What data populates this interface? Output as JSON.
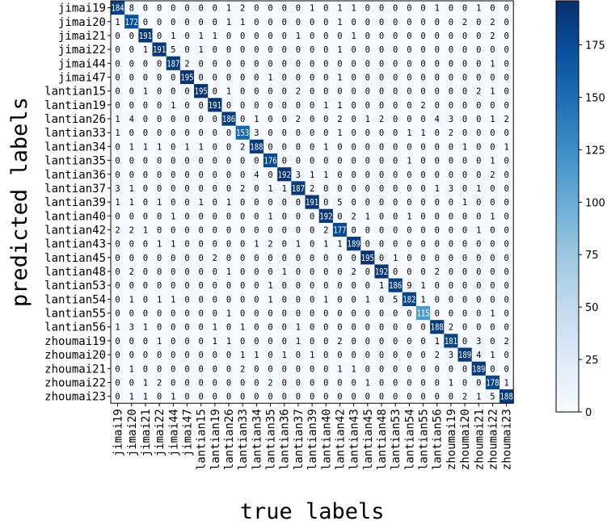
{
  "chart_data": {
    "type": "heatmap",
    "title": "",
    "xlabel": "true labels",
    "ylabel": "predicted labels",
    "row_labels": [
      "jimai19",
      "jimai20",
      "jimai21",
      "jimai22",
      "jimai44",
      "jimai47",
      "lantian15",
      "lantian19",
      "lantian26",
      "lantian33",
      "lantian34",
      "lantian35",
      "lantian36",
      "lantian37",
      "lantian39",
      "lantian40",
      "lantian42",
      "lantian43",
      "lantian45",
      "lantian48",
      "lantian53",
      "lantian54",
      "lantian55",
      "lantian56",
      "zhoumai19",
      "zhoumai20",
      "zhoumai21",
      "zhoumai22",
      "zhoumai23"
    ],
    "col_labels": [
      "jimai19",
      "jimai20",
      "jimai21",
      "jimai22",
      "jimai44",
      "jimai47",
      "lantian15",
      "lantian19",
      "lantian26",
      "lantian33",
      "lantian34",
      "lantian35",
      "lantian36",
      "lantian37",
      "lantian39",
      "lantian40",
      "lantian42",
      "lantian43",
      "lantian45",
      "lantian48",
      "lantian53",
      "lantian54",
      "lantian55",
      "lantian56",
      "zhoumai19",
      "zhoumai20",
      "zhoumai21",
      "zhoumai22",
      "zhoumai23"
    ],
    "values": [
      [
        184,
        8,
        0,
        0,
        0,
        0,
        0,
        0,
        1,
        2,
        0,
        0,
        0,
        0,
        1,
        0,
        1,
        1,
        0,
        0,
        0,
        0,
        0,
        1,
        0,
        0,
        1,
        0,
        0
      ],
      [
        1,
        172,
        0,
        0,
        0,
        0,
        0,
        0,
        1,
        1,
        0,
        0,
        0,
        0,
        0,
        0,
        1,
        0,
        0,
        0,
        0,
        0,
        0,
        0,
        0,
        2,
        0,
        2,
        0
      ],
      [
        0,
        0,
        191,
        0,
        1,
        0,
        1,
        1,
        0,
        0,
        0,
        0,
        0,
        1,
        0,
        0,
        0,
        1,
        0,
        0,
        0,
        0,
        0,
        0,
        0,
        0,
        0,
        2,
        0
      ],
      [
        0,
        0,
        1,
        191,
        5,
        0,
        1,
        0,
        0,
        0,
        0,
        0,
        0,
        0,
        0,
        0,
        1,
        0,
        0,
        0,
        0,
        0,
        0,
        0,
        0,
        0,
        0,
        0,
        0
      ],
      [
        0,
        0,
        0,
        0,
        187,
        2,
        0,
        0,
        0,
        0,
        0,
        0,
        0,
        0,
        0,
        0,
        0,
        0,
        0,
        0,
        0,
        0,
        0,
        0,
        0,
        0,
        0,
        1,
        0
      ],
      [
        0,
        0,
        0,
        0,
        0,
        195,
        0,
        0,
        0,
        0,
        0,
        1,
        0,
        0,
        0,
        0,
        1,
        0,
        0,
        0,
        0,
        0,
        0,
        0,
        0,
        0,
        0,
        0,
        0
      ],
      [
        0,
        0,
        1,
        0,
        0,
        0,
        195,
        0,
        1,
        0,
        0,
        0,
        0,
        2,
        0,
        0,
        0,
        0,
        0,
        0,
        0,
        0,
        0,
        0,
        0,
        0,
        2,
        1,
        0
      ],
      [
        0,
        0,
        0,
        0,
        1,
        0,
        0,
        191,
        0,
        0,
        0,
        0,
        0,
        0,
        0,
        1,
        1,
        0,
        0,
        0,
        0,
        0,
        2,
        0,
        0,
        0,
        0,
        0,
        0
      ],
      [
        1,
        4,
        0,
        0,
        0,
        0,
        0,
        0,
        186,
        0,
        1,
        0,
        0,
        2,
        0,
        0,
        2,
        0,
        1,
        2,
        0,
        0,
        0,
        4,
        3,
        0,
        0,
        1,
        2
      ],
      [
        1,
        0,
        0,
        0,
        0,
        0,
        0,
        0,
        0,
        153,
        3,
        0,
        0,
        0,
        0,
        0,
        1,
        0,
        0,
        0,
        0,
        1,
        1,
        0,
        2,
        0,
        0,
        0,
        0
      ],
      [
        0,
        1,
        1,
        1,
        0,
        1,
        1,
        0,
        0,
        2,
        188,
        0,
        0,
        0,
        0,
        1,
        0,
        0,
        0,
        0,
        0,
        0,
        0,
        0,
        0,
        1,
        0,
        0,
        1
      ],
      [
        0,
        0,
        0,
        0,
        0,
        0,
        0,
        0,
        0,
        0,
        0,
        176,
        0,
        0,
        0,
        0,
        0,
        0,
        0,
        0,
        0,
        1,
        0,
        0,
        0,
        0,
        0,
        1,
        0
      ],
      [
        0,
        0,
        0,
        0,
        0,
        0,
        0,
        0,
        0,
        0,
        4,
        0,
        192,
        3,
        1,
        1,
        0,
        0,
        0,
        0,
        0,
        0,
        0,
        0,
        0,
        0,
        0,
        2,
        0
      ],
      [
        3,
        1,
        0,
        0,
        0,
        0,
        0,
        0,
        0,
        2,
        0,
        1,
        1,
        187,
        2,
        0,
        0,
        0,
        0,
        0,
        0,
        0,
        0,
        1,
        3,
        0,
        1,
        0,
        0
      ],
      [
        1,
        1,
        0,
        1,
        0,
        0,
        1,
        0,
        1,
        0,
        0,
        0,
        0,
        0,
        191,
        0,
        5,
        0,
        0,
        0,
        0,
        0,
        0,
        0,
        0,
        1,
        0,
        0,
        0
      ],
      [
        0,
        0,
        0,
        0,
        1,
        0,
        0,
        0,
        0,
        0,
        0,
        1,
        0,
        0,
        0,
        192,
        0,
        2,
        1,
        0,
        0,
        1,
        0,
        0,
        0,
        0,
        0,
        1,
        0
      ],
      [
        2,
        2,
        1,
        0,
        0,
        0,
        0,
        0,
        0,
        0,
        0,
        0,
        0,
        0,
        0,
        2,
        177,
        0,
        0,
        0,
        0,
        0,
        0,
        0,
        0,
        0,
        1,
        0,
        0
      ],
      [
        0,
        0,
        0,
        1,
        1,
        0,
        0,
        0,
        0,
        0,
        1,
        2,
        0,
        1,
        0,
        1,
        1,
        189,
        0,
        0,
        0,
        0,
        0,
        0,
        0,
        0,
        0,
        0,
        0
      ],
      [
        0,
        0,
        0,
        0,
        0,
        0,
        0,
        2,
        0,
        0,
        0,
        0,
        0,
        0,
        0,
        0,
        0,
        0,
        195,
        0,
        1,
        0,
        0,
        0,
        0,
        0,
        0,
        0,
        0
      ],
      [
        0,
        2,
        0,
        0,
        0,
        0,
        0,
        0,
        1,
        0,
        0,
        0,
        1,
        0,
        0,
        0,
        0,
        2,
        0,
        192,
        0,
        0,
        0,
        2,
        0,
        0,
        0,
        0,
        0
      ],
      [
        0,
        0,
        0,
        0,
        0,
        0,
        0,
        0,
        0,
        0,
        0,
        1,
        0,
        0,
        0,
        0,
        0,
        0,
        0,
        1,
        186,
        9,
        1,
        0,
        0,
        0,
        0,
        0,
        0
      ],
      [
        0,
        1,
        0,
        1,
        1,
        0,
        0,
        0,
        0,
        0,
        0,
        1,
        0,
        0,
        0,
        1,
        0,
        0,
        1,
        0,
        5,
        182,
        1,
        0,
        0,
        0,
        0,
        0,
        0
      ],
      [
        0,
        0,
        0,
        0,
        0,
        0,
        0,
        0,
        1,
        0,
        0,
        0,
        0,
        0,
        0,
        0,
        0,
        0,
        0,
        0,
        0,
        0,
        115,
        0,
        0,
        0,
        0,
        1,
        0
      ],
      [
        1,
        3,
        1,
        0,
        0,
        0,
        0,
        1,
        0,
        1,
        0,
        0,
        0,
        1,
        0,
        0,
        0,
        0,
        0,
        0,
        0,
        0,
        0,
        188,
        2,
        0,
        0,
        0,
        0
      ],
      [
        0,
        0,
        0,
        1,
        0,
        0,
        0,
        1,
        1,
        0,
        0,
        0,
        0,
        1,
        0,
        0,
        2,
        0,
        0,
        0,
        0,
        0,
        0,
        1,
        181,
        0,
        3,
        0,
        2
      ],
      [
        0,
        0,
        0,
        0,
        0,
        0,
        0,
        0,
        0,
        1,
        1,
        0,
        1,
        0,
        1,
        0,
        0,
        0,
        0,
        0,
        0,
        0,
        0,
        2,
        3,
        189,
        4,
        1,
        0
      ],
      [
        0,
        1,
        0,
        0,
        0,
        0,
        0,
        0,
        0,
        2,
        0,
        0,
        0,
        0,
        0,
        0,
        1,
        1,
        0,
        0,
        0,
        0,
        0,
        0,
        0,
        0,
        189,
        0,
        0
      ],
      [
        0,
        0,
        1,
        2,
        0,
        0,
        0,
        0,
        0,
        0,
        0,
        2,
        0,
        0,
        0,
        0,
        0,
        0,
        1,
        0,
        0,
        0,
        0,
        0,
        1,
        0,
        0,
        178,
        1
      ],
      [
        0,
        1,
        1,
        0,
        1,
        0,
        0,
        0,
        0,
        0,
        0,
        0,
        0,
        0,
        0,
        0,
        0,
        0,
        0,
        0,
        0,
        0,
        0,
        0,
        0,
        2,
        1,
        5,
        188
      ]
    ],
    "colorbar": {
      "min": 0,
      "max": 196,
      "ticks": [
        0,
        25,
        50,
        75,
        100,
        125,
        150,
        175
      ],
      "colormap": [
        "#f7fbff",
        "#deebf7",
        "#c6dbef",
        "#9ecae1",
        "#6baed6",
        "#4292c6",
        "#2171b5",
        "#08519c",
        "#08306b"
      ]
    },
    "grid": false,
    "legend": "right"
  }
}
